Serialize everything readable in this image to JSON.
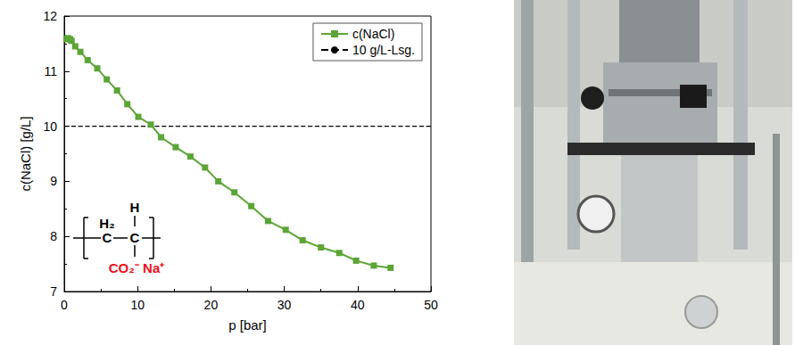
{
  "chart_data": {
    "type": "line",
    "x_label": "p [bar]",
    "y_label": "c(NaCl) [g/L]",
    "xlim": [
      0,
      50
    ],
    "xticks": [
      0,
      10,
      20,
      30,
      40,
      50
    ],
    "ylim": [
      7,
      12
    ],
    "yticks": [
      7,
      8,
      9,
      10,
      11,
      12
    ],
    "grid": false,
    "legend": "upper right",
    "series": [
      {
        "name": "c(NaCl)",
        "color": "#5ba536",
        "marker": "square",
        "line_style": "solid",
        "x": [
          0.3,
          0.5,
          0.8,
          1.0,
          1.5,
          2.2,
          3.2,
          4.5,
          5.8,
          7.2,
          8.6,
          10.1,
          11.8,
          13.2,
          15.2,
          17.2,
          19.2,
          21.0,
          23.2,
          25.5,
          27.8,
          30.2,
          32.5,
          35.0,
          37.5,
          39.8,
          42.2,
          44.5
        ],
        "values": [
          11.58,
          11.6,
          11.58,
          11.55,
          11.45,
          11.35,
          11.2,
          11.05,
          10.85,
          10.65,
          10.4,
          10.17,
          10.03,
          9.8,
          9.62,
          9.45,
          9.25,
          9.0,
          8.8,
          8.55,
          8.28,
          8.12,
          7.93,
          7.8,
          7.7,
          7.56,
          7.47,
          7.43
        ]
      },
      {
        "name": "10 g/L-Lsg.",
        "color": "#000000",
        "marker": "none",
        "line_style": "dashed",
        "x": [
          0,
          50
        ],
        "values": [
          10,
          10
        ]
      }
    ],
    "structure": {
      "left_group": "H₂",
      "left_atom": "C",
      "right_group": "H",
      "right_atom": "C",
      "substituent": "CO₂⁻ Na⁺",
      "substituent_color": "#e8101a"
    }
  }
}
